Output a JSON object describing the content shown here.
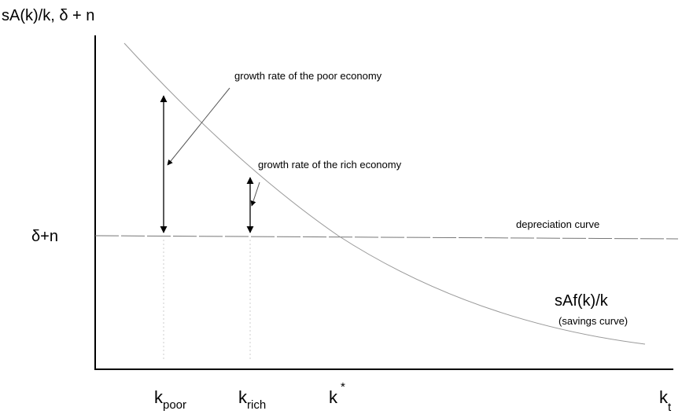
{
  "y_axis_label": "sA(k)/k, δ + n",
  "depreciation_level_label": "δ+n",
  "annotations": {
    "poor_growth": "growth rate of the poor economy",
    "rich_growth": "growth rate of the rich economy",
    "depreciation": "depreciation curve",
    "savings": "sAf(k)/k",
    "savings_note": "(savings curve)"
  },
  "x_labels": [
    {
      "main": "k",
      "sub": "poor"
    },
    {
      "main": "k",
      "sub": "rich"
    },
    {
      "main": "k",
      "sup": "*"
    },
    {
      "main": "k",
      "sub": "t"
    }
  ]
}
